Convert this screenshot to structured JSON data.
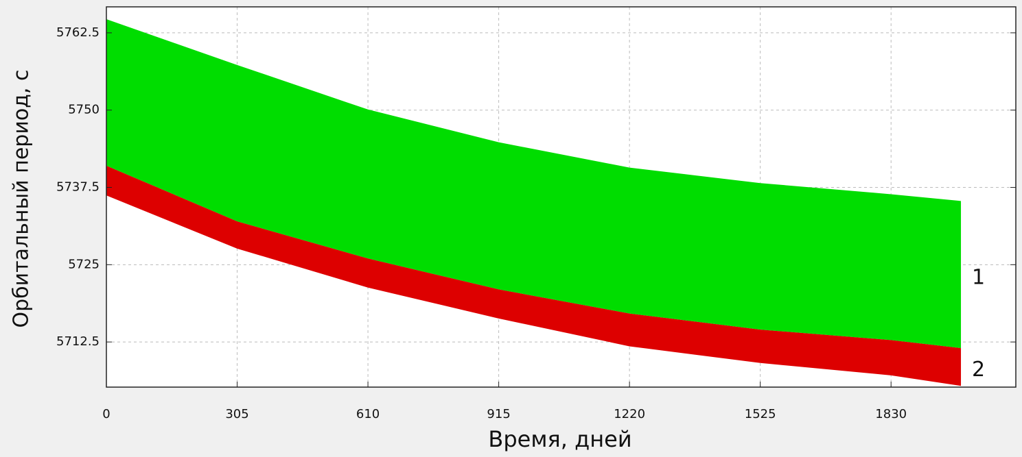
{
  "chart_data": {
    "type": "band",
    "x_label": "Время, дней",
    "y_label": "Орбитальный  период, с",
    "x": [
      0,
      305,
      610,
      915,
      1220,
      1525,
      1830,
      1993
    ],
    "series": [
      {
        "name": "1",
        "color": "#00dd00",
        "values": [
          5764.7,
          5757.3,
          5750.1,
          5744.8,
          5740.7,
          5738.2,
          5736.4,
          5735.3
        ],
        "lower": [
          5741.0,
          5732.0,
          5726.0,
          5721.0,
          5717.1,
          5714.5,
          5712.8,
          5711.5
        ]
      },
      {
        "name": "2",
        "color": "#dd0000",
        "values": [
          5741.0,
          5732.0,
          5726.0,
          5721.0,
          5717.1,
          5714.5,
          5712.8,
          5711.5
        ],
        "lower": [
          5736.2,
          5727.6,
          5721.3,
          5716.3,
          5711.8,
          5709.1,
          5707.1,
          5705.4
        ]
      }
    ],
    "xlim": [
      0,
      2121
    ],
    "xticks": [
      0,
      305,
      610,
      915,
      1220,
      1525,
      1830
    ],
    "ylim": [
      5705.2,
      5766.7
    ],
    "yticks": [
      5712.5,
      5725,
      5737.5,
      5750,
      5762.5
    ],
    "grid": true
  }
}
